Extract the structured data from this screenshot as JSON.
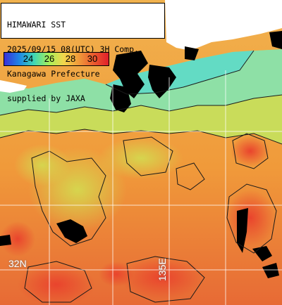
{
  "header": {
    "lines": [
      "HIMAWARI SST",
      "2025/09/15 08(UTC) 3H Comp.",
      "Kanagawa Prefecture",
      "supplied by JAXA"
    ]
  },
  "legend": {
    "ticks": [
      "24",
      "26",
      "28",
      "30"
    ],
    "colors": [
      "#3a2fd8",
      "#1f86e6",
      "#3fd7b4",
      "#a6ef58",
      "#f2d64c",
      "#f09a3a",
      "#ea5a2e",
      "#e11f2a"
    ]
  },
  "grid": {
    "lat_labels": [
      "32N"
    ],
    "lon_labels": [
      "135E"
    ]
  },
  "map": {
    "sea_palette": {
      "cool": "#7fe0b4",
      "mid": "#c8dd58",
      "warm": "#f1b24e",
      "hot": "#ea6b3a",
      "hottest": "#e43f2c"
    },
    "land_color": "#ffffff",
    "cloud_color": "#000000",
    "grid_color": "#ffffff"
  }
}
